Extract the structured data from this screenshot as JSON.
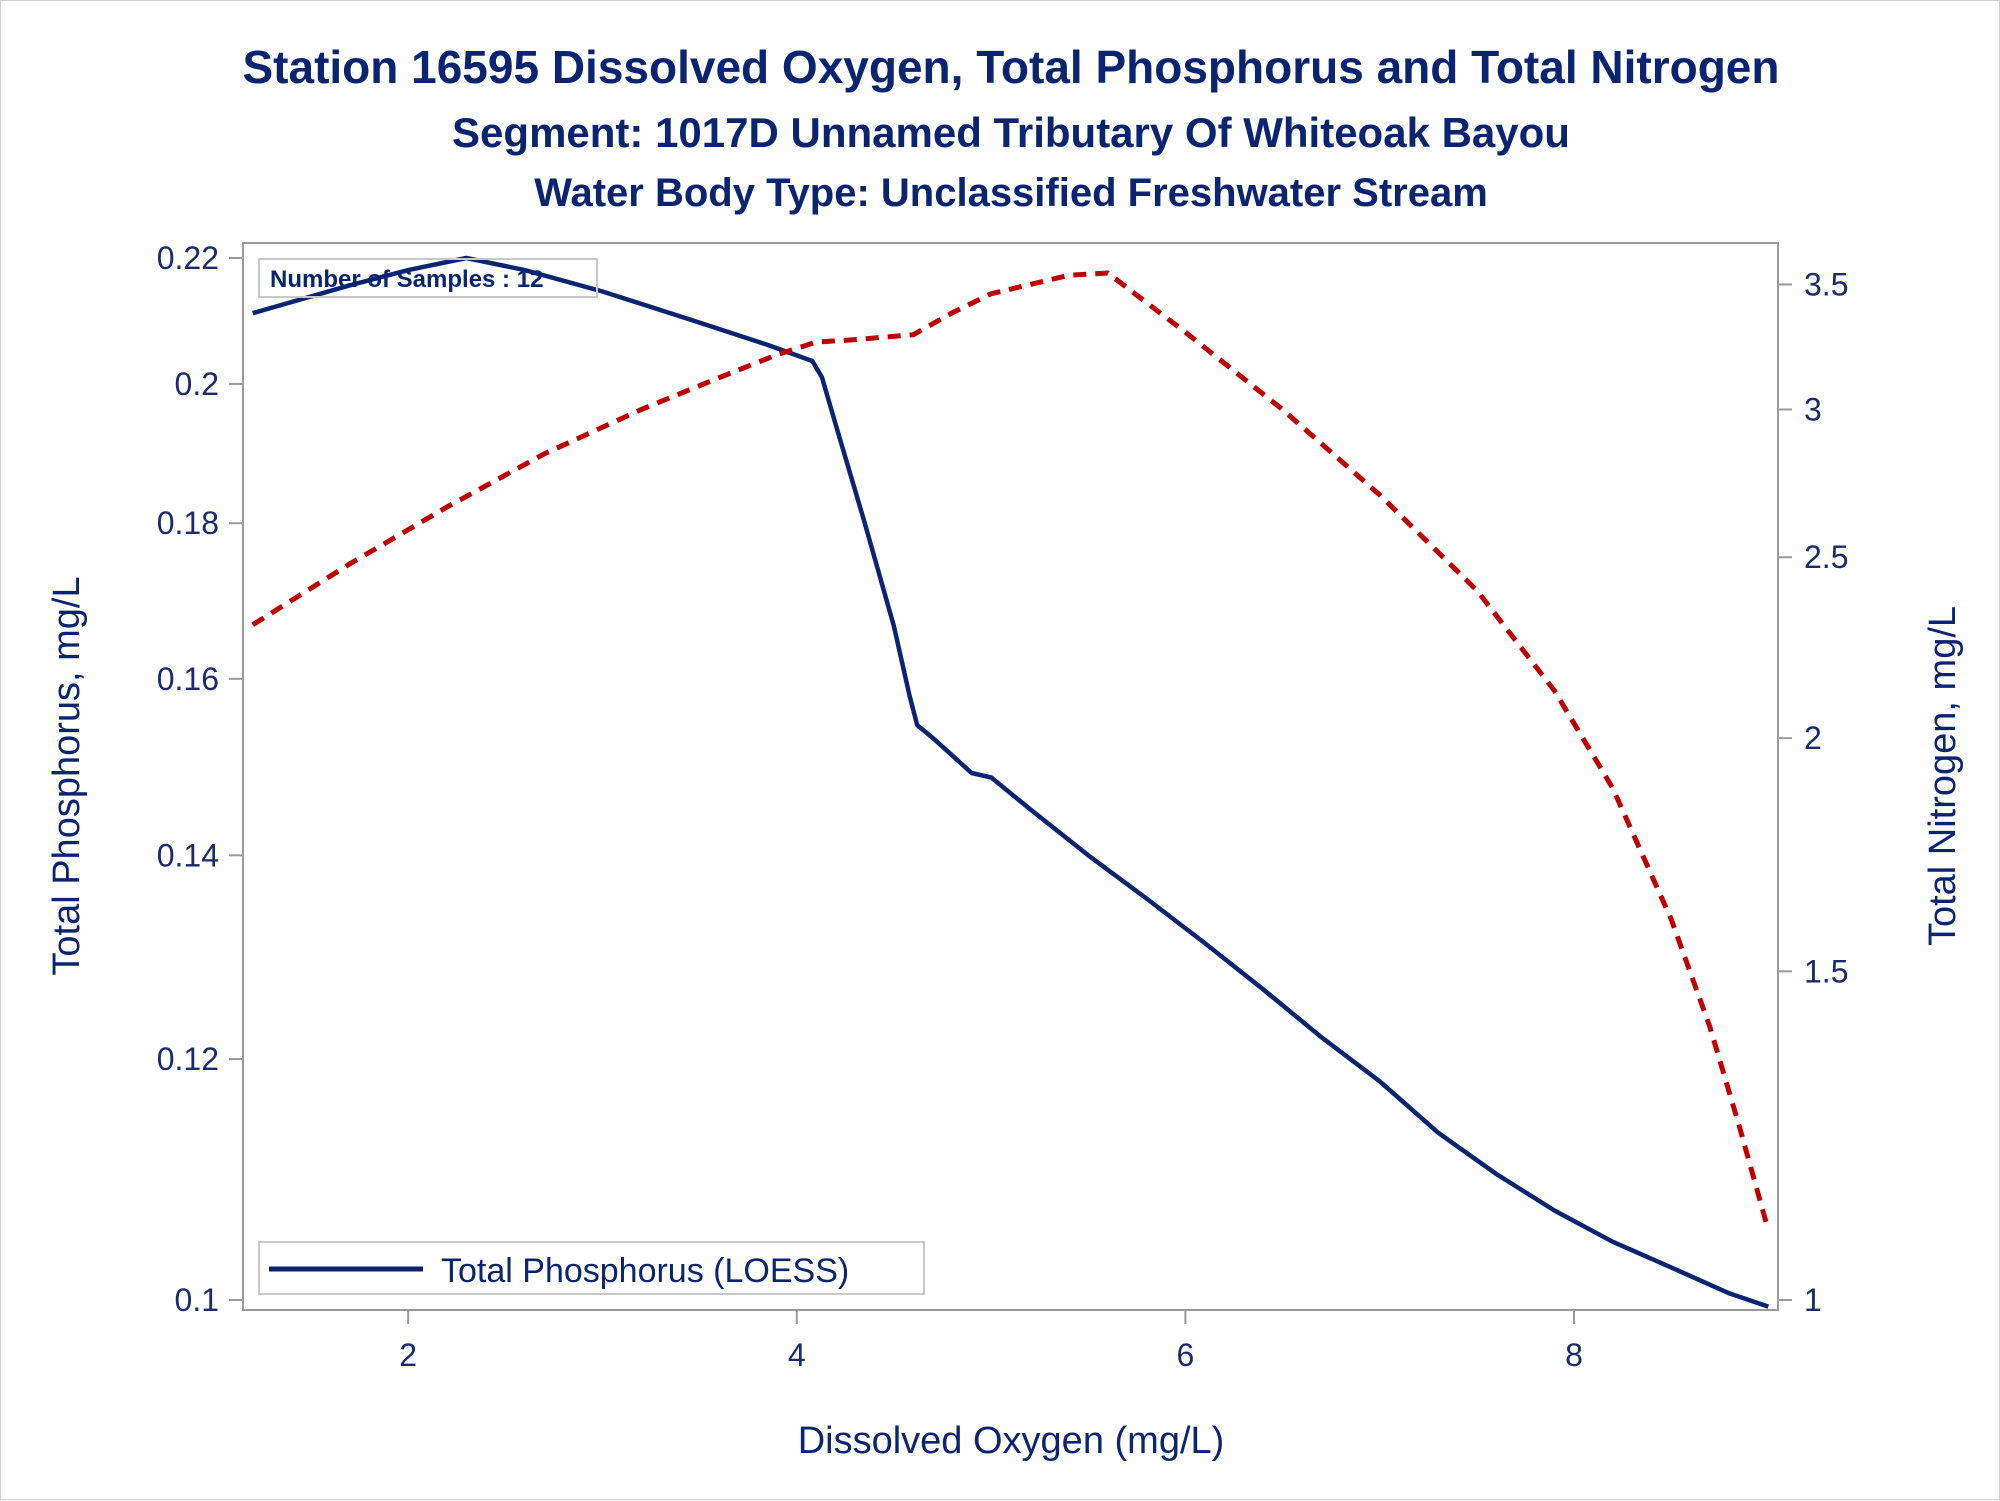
{
  "chart_data": {
    "type": "line",
    "title": "Station 16595  Dissolved Oxygen, Total Phosphorus and Total Nitrogen",
    "subtitle": "Segment: 1017D  Unnamed Tributary Of Whiteoak Bayou",
    "subtitle2": "Water Body Type: Unclassified Freshwater Stream",
    "xlabel": "Dissolved Oxygen (mg/L)",
    "ylabel": "Total Phosphorus, mg/L",
    "y2label": "Total Nitrogen, mg/L",
    "xlim": [
      1.15,
      9.05
    ],
    "ylim": [
      0.1,
      0.22
    ],
    "y2lim": [
      1.0,
      3.55
    ],
    "yscale": "log",
    "y2scale": "log",
    "xticks": [
      "2",
      "4",
      "6",
      "8"
    ],
    "yticks": [
      "0.1",
      "0.12",
      "0.14",
      "0.16",
      "0.18",
      "0.2",
      "0.22"
    ],
    "y2ticks": [
      "1",
      "1.5",
      "2",
      "2.5",
      "3",
      "3.5"
    ],
    "annotation": "Number of Samples : 12",
    "legend": {
      "position": "bottom-left",
      "entries": [
        "Total Phosphorus (LOESS)"
      ]
    },
    "series": [
      {
        "name": "Total Phosphorus (LOESS)",
        "axis": "left",
        "color": "#0a2472",
        "style": "solid",
        "x": [
          1.2,
          1.7,
          2.0,
          2.3,
          2.6,
          3.0,
          3.5,
          3.85,
          4.08,
          4.13,
          4.2,
          4.35,
          4.5,
          4.58,
          4.62,
          4.7,
          4.8,
          4.9,
          5.0,
          5.2,
          5.5,
          5.8,
          6.1,
          6.4,
          6.7,
          7.0,
          7.3,
          7.6,
          7.9,
          8.2,
          8.5,
          8.8,
          9.0
        ],
        "y": [
          0.211,
          0.2155,
          0.218,
          0.22,
          0.218,
          0.2145,
          0.2095,
          0.206,
          0.2035,
          0.201,
          0.194,
          0.18,
          0.1665,
          0.158,
          0.1545,
          0.153,
          0.151,
          0.149,
          0.1485,
          0.145,
          0.14,
          0.1355,
          0.131,
          0.1265,
          0.122,
          0.118,
          0.1135,
          0.11,
          0.107,
          0.1045,
          0.1025,
          0.1005,
          0.0995
        ]
      },
      {
        "name": "",
        "axis": "right",
        "color": "#c00000",
        "style": "dashed",
        "x": [
          1.2,
          1.7,
          2.2,
          2.7,
          3.2,
          3.6,
          3.9,
          4.1,
          4.3,
          4.6,
          4.8,
          5.0,
          5.2,
          5.4,
          5.6,
          6.0,
          6.5,
          7.0,
          7.5,
          7.9,
          8.2,
          8.5,
          8.7,
          8.85,
          9.0
        ],
        "y": [
          2.3,
          2.48,
          2.66,
          2.84,
          3.0,
          3.12,
          3.21,
          3.26,
          3.27,
          3.29,
          3.38,
          3.46,
          3.5,
          3.54,
          3.55,
          3.3,
          3.0,
          2.7,
          2.4,
          2.12,
          1.88,
          1.6,
          1.4,
          1.24,
          1.09
        ]
      }
    ]
  }
}
